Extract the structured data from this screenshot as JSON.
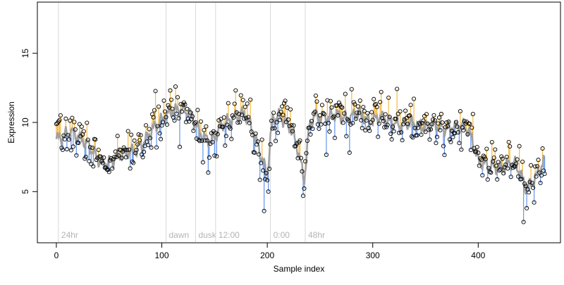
{
  "chart_data": {
    "type": "line",
    "title": "",
    "xlabel": "Sample index",
    "ylabel": "Expression",
    "xlim": [
      -18,
      478
    ],
    "ylim": [
      1.3,
      18.7
    ],
    "x_ticks": [
      0,
      100,
      200,
      300,
      400
    ],
    "y_ticks": [
      5,
      10,
      15
    ],
    "grid": false,
    "legend": "none",
    "colors": {
      "above_fit": "#f4b942",
      "below_fit": "#6495ed",
      "fit_line": "#a0a0a0",
      "points_stroke": "#000000",
      "vertical_markers": "#d8d8d8",
      "annotation_text": "#b4b4b4"
    },
    "markers": [
      {
        "x": 2,
        "label": "24hr"
      },
      {
        "x": 104,
        "label": "dawn"
      },
      {
        "x": 132,
        "label": "dusk"
      },
      {
        "x": 151,
        "label": "12:00"
      },
      {
        "x": 203,
        "label": "0:00"
      },
      {
        "x": 236,
        "label": "48hr"
      }
    ],
    "anchors": [
      [
        0,
        8.8
      ],
      [
        5,
        8.9
      ],
      [
        10,
        9.2
      ],
      [
        15,
        9.3
      ],
      [
        20,
        9.0
      ],
      [
        25,
        8.7
      ],
      [
        30,
        8.4
      ],
      [
        35,
        7.9
      ],
      [
        40,
        7.3
      ],
      [
        45,
        7.0
      ],
      [
        50,
        7.1
      ],
      [
        55,
        7.3
      ],
      [
        60,
        7.6
      ],
      [
        65,
        7.8
      ],
      [
        70,
        7.9
      ],
      [
        75,
        8.0
      ],
      [
        80,
        8.3
      ],
      [
        85,
        8.8
      ],
      [
        90,
        9.4
      ],
      [
        95,
        9.8
      ],
      [
        100,
        10.2
      ],
      [
        105,
        10.6
      ],
      [
        110,
        10.8
      ],
      [
        115,
        10.9
      ],
      [
        120,
        10.9
      ],
      [
        125,
        10.8
      ],
      [
        130,
        10.3
      ],
      [
        135,
        9.4
      ],
      [
        140,
        8.9
      ],
      [
        145,
        8.7
      ],
      [
        150,
        8.9
      ],
      [
        155,
        9.6
      ],
      [
        160,
        10.0
      ],
      [
        165,
        10.2
      ],
      [
        170,
        10.4
      ],
      [
        175,
        10.6
      ],
      [
        180,
        10.5
      ],
      [
        185,
        9.6
      ],
      [
        190,
        8.6
      ],
      [
        195,
        7.4
      ],
      [
        200,
        6.2
      ],
      [
        203,
        8.8
      ],
      [
        205,
        10.2
      ],
      [
        210,
        10.5
      ],
      [
        215,
        10.2
      ],
      [
        220,
        9.8
      ],
      [
        225,
        9.1
      ],
      [
        230,
        7.7
      ],
      [
        235,
        5.8
      ],
      [
        240,
        9.8
      ],
      [
        245,
        10.5
      ],
      [
        250,
        10.4
      ],
      [
        255,
        10.3
      ],
      [
        260,
        10.5
      ],
      [
        265,
        10.6
      ],
      [
        270,
        10.4
      ],
      [
        275,
        10.3
      ],
      [
        280,
        10.4
      ],
      [
        285,
        10.7
      ],
      [
        290,
        10.5
      ],
      [
        295,
        10.1
      ],
      [
        300,
        10.1
      ],
      [
        305,
        10.4
      ],
      [
        310,
        10.3
      ],
      [
        315,
        10.1
      ],
      [
        320,
        10.0
      ],
      [
        325,
        9.8
      ],
      [
        330,
        9.9
      ],
      [
        335,
        10.0
      ],
      [
        340,
        9.9
      ],
      [
        345,
        9.7
      ],
      [
        350,
        9.7
      ],
      [
        355,
        9.8
      ],
      [
        360,
        9.8
      ],
      [
        365,
        9.6
      ],
      [
        370,
        9.5
      ],
      [
        375,
        9.6
      ],
      [
        380,
        9.7
      ],
      [
        385,
        9.8
      ],
      [
        390,
        9.5
      ],
      [
        395,
        8.6
      ],
      [
        400,
        7.2
      ],
      [
        405,
        7.0
      ],
      [
        410,
        6.9
      ],
      [
        415,
        6.8
      ],
      [
        420,
        6.7
      ],
      [
        425,
        6.8
      ],
      [
        430,
        7.1
      ],
      [
        435,
        7.0
      ],
      [
        440,
        6.3
      ],
      [
        445,
        5.3
      ],
      [
        450,
        5.5
      ],
      [
        455,
        6.1
      ],
      [
        460,
        6.9
      ],
      [
        463,
        7.2
      ]
    ],
    "n_points": 464,
    "noise_sd": 0.75,
    "seed": 7,
    "spikes": [
      [
        197,
        3.6
      ],
      [
        201,
        5.0
      ],
      [
        234,
        4.7
      ],
      [
        280,
        12.4
      ],
      [
        308,
        12.2
      ],
      [
        443,
        2.8
      ],
      [
        446,
        3.8
      ]
    ]
  }
}
